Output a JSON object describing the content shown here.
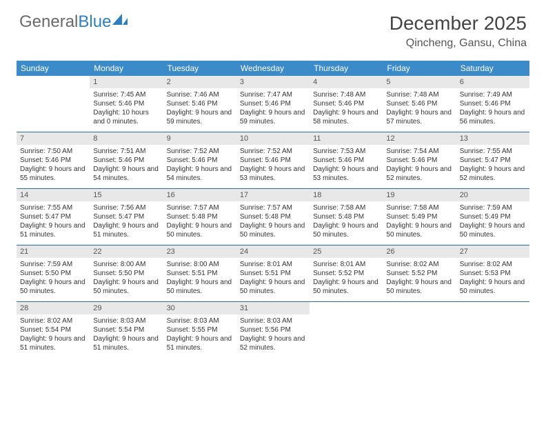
{
  "brand": {
    "part1": "General",
    "part2": "Blue"
  },
  "title": "December 2025",
  "location": "Qincheng, Gansu, China",
  "colors": {
    "header_bg": "#3b8bc9",
    "header_text": "#ffffff",
    "daynum_bg": "#e8e8e8",
    "rule": "#2b6fa8",
    "brand_blue": "#2b80c4",
    "text": "#333333"
  },
  "weekdays": [
    "Sunday",
    "Monday",
    "Tuesday",
    "Wednesday",
    "Thursday",
    "Friday",
    "Saturday"
  ],
  "weeks": [
    [
      null,
      {
        "n": "1",
        "sr": "Sunrise: 7:45 AM",
        "ss": "Sunset: 5:46 PM",
        "dl": "Daylight: 10 hours and 0 minutes."
      },
      {
        "n": "2",
        "sr": "Sunrise: 7:46 AM",
        "ss": "Sunset: 5:46 PM",
        "dl": "Daylight: 9 hours and 59 minutes."
      },
      {
        "n": "3",
        "sr": "Sunrise: 7:47 AM",
        "ss": "Sunset: 5:46 PM",
        "dl": "Daylight: 9 hours and 59 minutes."
      },
      {
        "n": "4",
        "sr": "Sunrise: 7:48 AM",
        "ss": "Sunset: 5:46 PM",
        "dl": "Daylight: 9 hours and 58 minutes."
      },
      {
        "n": "5",
        "sr": "Sunrise: 7:48 AM",
        "ss": "Sunset: 5:46 PM",
        "dl": "Daylight: 9 hours and 57 minutes."
      },
      {
        "n": "6",
        "sr": "Sunrise: 7:49 AM",
        "ss": "Sunset: 5:46 PM",
        "dl": "Daylight: 9 hours and 56 minutes."
      }
    ],
    [
      {
        "n": "7",
        "sr": "Sunrise: 7:50 AM",
        "ss": "Sunset: 5:46 PM",
        "dl": "Daylight: 9 hours and 55 minutes."
      },
      {
        "n": "8",
        "sr": "Sunrise: 7:51 AM",
        "ss": "Sunset: 5:46 PM",
        "dl": "Daylight: 9 hours and 54 minutes."
      },
      {
        "n": "9",
        "sr": "Sunrise: 7:52 AM",
        "ss": "Sunset: 5:46 PM",
        "dl": "Daylight: 9 hours and 54 minutes."
      },
      {
        "n": "10",
        "sr": "Sunrise: 7:52 AM",
        "ss": "Sunset: 5:46 PM",
        "dl": "Daylight: 9 hours and 53 minutes."
      },
      {
        "n": "11",
        "sr": "Sunrise: 7:53 AM",
        "ss": "Sunset: 5:46 PM",
        "dl": "Daylight: 9 hours and 53 minutes."
      },
      {
        "n": "12",
        "sr": "Sunrise: 7:54 AM",
        "ss": "Sunset: 5:46 PM",
        "dl": "Daylight: 9 hours and 52 minutes."
      },
      {
        "n": "13",
        "sr": "Sunrise: 7:55 AM",
        "ss": "Sunset: 5:47 PM",
        "dl": "Daylight: 9 hours and 52 minutes."
      }
    ],
    [
      {
        "n": "14",
        "sr": "Sunrise: 7:55 AM",
        "ss": "Sunset: 5:47 PM",
        "dl": "Daylight: 9 hours and 51 minutes."
      },
      {
        "n": "15",
        "sr": "Sunrise: 7:56 AM",
        "ss": "Sunset: 5:47 PM",
        "dl": "Daylight: 9 hours and 51 minutes."
      },
      {
        "n": "16",
        "sr": "Sunrise: 7:57 AM",
        "ss": "Sunset: 5:48 PM",
        "dl": "Daylight: 9 hours and 50 minutes."
      },
      {
        "n": "17",
        "sr": "Sunrise: 7:57 AM",
        "ss": "Sunset: 5:48 PM",
        "dl": "Daylight: 9 hours and 50 minutes."
      },
      {
        "n": "18",
        "sr": "Sunrise: 7:58 AM",
        "ss": "Sunset: 5:48 PM",
        "dl": "Daylight: 9 hours and 50 minutes."
      },
      {
        "n": "19",
        "sr": "Sunrise: 7:58 AM",
        "ss": "Sunset: 5:49 PM",
        "dl": "Daylight: 9 hours and 50 minutes."
      },
      {
        "n": "20",
        "sr": "Sunrise: 7:59 AM",
        "ss": "Sunset: 5:49 PM",
        "dl": "Daylight: 9 hours and 50 minutes."
      }
    ],
    [
      {
        "n": "21",
        "sr": "Sunrise: 7:59 AM",
        "ss": "Sunset: 5:50 PM",
        "dl": "Daylight: 9 hours and 50 minutes."
      },
      {
        "n": "22",
        "sr": "Sunrise: 8:00 AM",
        "ss": "Sunset: 5:50 PM",
        "dl": "Daylight: 9 hours and 50 minutes."
      },
      {
        "n": "23",
        "sr": "Sunrise: 8:00 AM",
        "ss": "Sunset: 5:51 PM",
        "dl": "Daylight: 9 hours and 50 minutes."
      },
      {
        "n": "24",
        "sr": "Sunrise: 8:01 AM",
        "ss": "Sunset: 5:51 PM",
        "dl": "Daylight: 9 hours and 50 minutes."
      },
      {
        "n": "25",
        "sr": "Sunrise: 8:01 AM",
        "ss": "Sunset: 5:52 PM",
        "dl": "Daylight: 9 hours and 50 minutes."
      },
      {
        "n": "26",
        "sr": "Sunrise: 8:02 AM",
        "ss": "Sunset: 5:52 PM",
        "dl": "Daylight: 9 hours and 50 minutes."
      },
      {
        "n": "27",
        "sr": "Sunrise: 8:02 AM",
        "ss": "Sunset: 5:53 PM",
        "dl": "Daylight: 9 hours and 50 minutes."
      }
    ],
    [
      {
        "n": "28",
        "sr": "Sunrise: 8:02 AM",
        "ss": "Sunset: 5:54 PM",
        "dl": "Daylight: 9 hours and 51 minutes."
      },
      {
        "n": "29",
        "sr": "Sunrise: 8:03 AM",
        "ss": "Sunset: 5:54 PM",
        "dl": "Daylight: 9 hours and 51 minutes."
      },
      {
        "n": "30",
        "sr": "Sunrise: 8:03 AM",
        "ss": "Sunset: 5:55 PM",
        "dl": "Daylight: 9 hours and 51 minutes."
      },
      {
        "n": "31",
        "sr": "Sunrise: 8:03 AM",
        "ss": "Sunset: 5:56 PM",
        "dl": "Daylight: 9 hours and 52 minutes."
      },
      null,
      null,
      null
    ]
  ]
}
